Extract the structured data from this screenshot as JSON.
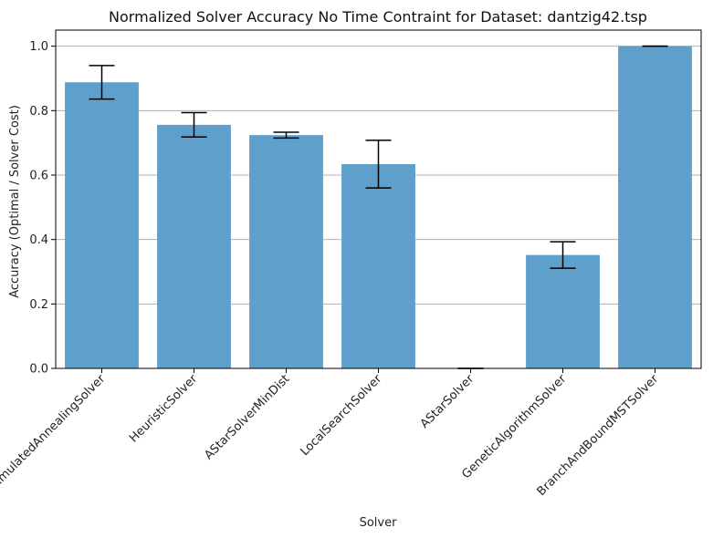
{
  "chart_data": {
    "type": "bar",
    "title": "Normalized Solver Accuracy No Time Contraint for Dataset: dantzig42.tsp",
    "xlabel": "Solver",
    "ylabel": "Accuracy (Optimal / Solver Cost)",
    "categories": [
      "SimulatedAnnealingSolver",
      "HeuristicSolver",
      "AStarSolverMinDist",
      "LocalSearchSolver",
      "AStarSolver",
      "GeneticAlgorithmSolver",
      "BranchAndBoundMSTSolver"
    ],
    "values": [
      0.888,
      0.756,
      0.724,
      0.634,
      0.0,
      0.352,
      1.0
    ],
    "errors": [
      0.052,
      0.038,
      0.009,
      0.074,
      0.0,
      0.041,
      0.0
    ],
    "ylim": [
      0,
      1.05
    ],
    "yticks": [
      0.0,
      0.2,
      0.4,
      0.6,
      0.8,
      1.0
    ],
    "ytick_labels": [
      "0.0",
      "0.2",
      "0.4",
      "0.6",
      "0.8",
      "1.0"
    ],
    "grid": "y",
    "bar_color": "#5f9fcc",
    "error_color": "#000000"
  }
}
